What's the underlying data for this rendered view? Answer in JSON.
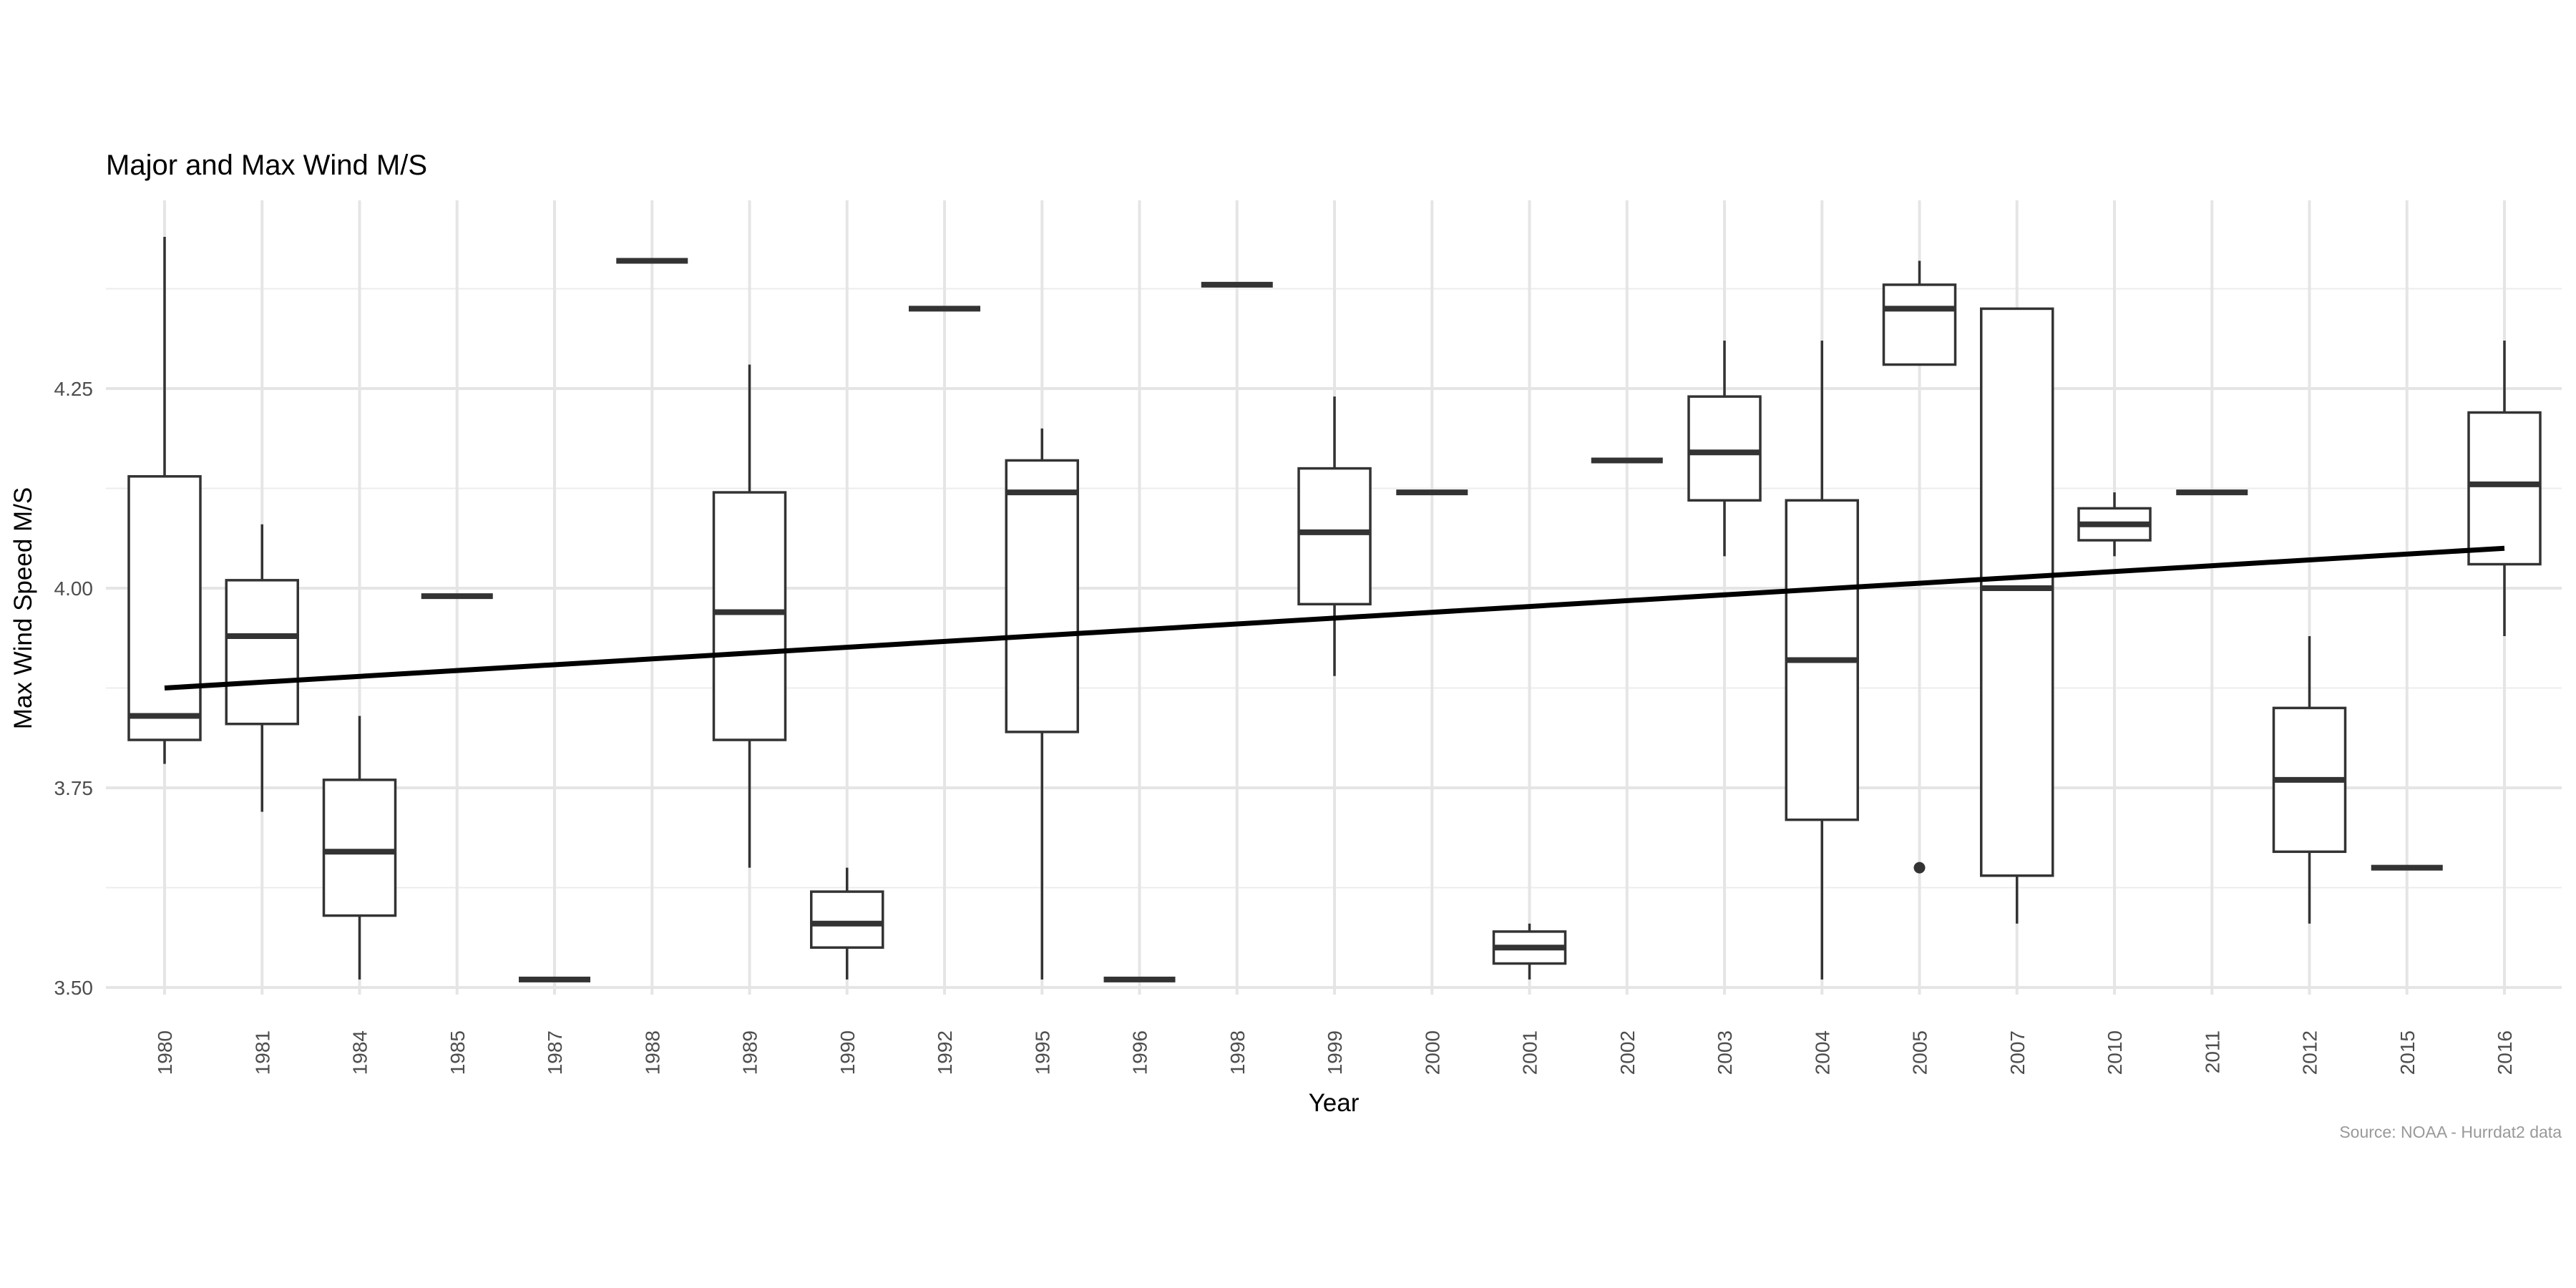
{
  "chart_data": {
    "type": "boxplot",
    "title": "Major and Max Wind M/S",
    "xlabel": "Year",
    "ylabel": "Max Wind Speed M/S",
    "caption": "Source: NOAA - Hurrdat2 data",
    "ylim": [
      3.47,
      4.55
    ],
    "y_ticks": [
      3.5,
      3.75,
      4.0,
      4.25
    ],
    "y_tick_labels": [
      "3.50",
      "3.75",
      "4.00",
      "4.25"
    ],
    "grid": true,
    "categories": [
      "1980",
      "1981",
      "1984",
      "1985",
      "1987",
      "1988",
      "1989",
      "1990",
      "1992",
      "1995",
      "1996",
      "1998",
      "1999",
      "2000",
      "2001",
      "2002",
      "2003",
      "2004",
      "2005",
      "2007",
      "2010",
      "2011",
      "2012",
      "2015",
      "2016"
    ],
    "boxes": [
      {
        "category": "1980",
        "min": 3.78,
        "q1": 3.81,
        "median": 3.84,
        "q3": 4.14,
        "max": 4.44,
        "outliers": []
      },
      {
        "category": "1981",
        "min": 3.72,
        "q1": 3.83,
        "median": 3.94,
        "q3": 4.01,
        "max": 4.08,
        "outliers": []
      },
      {
        "category": "1984",
        "min": 3.51,
        "q1": 3.59,
        "median": 3.67,
        "q3": 3.76,
        "max": 3.84,
        "outliers": []
      },
      {
        "category": "1985",
        "min": 3.99,
        "q1": 3.99,
        "median": 3.99,
        "q3": 3.99,
        "max": 3.99,
        "outliers": []
      },
      {
        "category": "1987",
        "min": 3.51,
        "q1": 3.51,
        "median": 3.51,
        "q3": 3.51,
        "max": 3.51,
        "outliers": []
      },
      {
        "category": "1988",
        "min": 4.41,
        "q1": 4.41,
        "median": 4.41,
        "q3": 4.41,
        "max": 4.41,
        "outliers": []
      },
      {
        "category": "1989",
        "min": 3.65,
        "q1": 3.81,
        "median": 3.97,
        "q3": 4.12,
        "max": 4.28,
        "outliers": []
      },
      {
        "category": "1990",
        "min": 3.51,
        "q1": 3.55,
        "median": 3.58,
        "q3": 3.62,
        "max": 3.65,
        "outliers": []
      },
      {
        "category": "1992",
        "min": 4.35,
        "q1": 4.35,
        "median": 4.35,
        "q3": 4.35,
        "max": 4.35,
        "outliers": []
      },
      {
        "category": "1995",
        "min": 3.51,
        "q1": 3.82,
        "median": 4.12,
        "q3": 4.16,
        "max": 4.2,
        "outliers": []
      },
      {
        "category": "1996",
        "min": 3.51,
        "q1": 3.51,
        "median": 3.51,
        "q3": 3.51,
        "max": 3.51,
        "outliers": []
      },
      {
        "category": "1998",
        "min": 4.38,
        "q1": 4.38,
        "median": 4.38,
        "q3": 4.38,
        "max": 4.38,
        "outliers": []
      },
      {
        "category": "1999",
        "min": 3.89,
        "q1": 3.98,
        "median": 4.07,
        "q3": 4.15,
        "max": 4.24,
        "outliers": []
      },
      {
        "category": "2000",
        "min": 4.12,
        "q1": 4.12,
        "median": 4.12,
        "q3": 4.12,
        "max": 4.12,
        "outliers": []
      },
      {
        "category": "2001",
        "min": 3.51,
        "q1": 3.53,
        "median": 3.55,
        "q3": 3.57,
        "max": 3.58,
        "outliers": []
      },
      {
        "category": "2002",
        "min": 4.16,
        "q1": 4.16,
        "median": 4.16,
        "q3": 4.16,
        "max": 4.16,
        "outliers": []
      },
      {
        "category": "2003",
        "min": 4.04,
        "q1": 4.11,
        "median": 4.17,
        "q3": 4.24,
        "max": 4.31,
        "outliers": []
      },
      {
        "category": "2004",
        "min": 3.51,
        "q1": 3.71,
        "median": 3.91,
        "q3": 4.11,
        "max": 4.31,
        "outliers": []
      },
      {
        "category": "2005",
        "min": 4.28,
        "q1": 4.28,
        "median": 4.35,
        "q3": 4.38,
        "max": 4.41,
        "outliers": [
          3.65
        ]
      },
      {
        "category": "2007",
        "min": 3.58,
        "q1": 3.64,
        "median": 4.0,
        "q3": 4.35,
        "max": 4.35,
        "outliers": []
      },
      {
        "category": "2010",
        "min": 4.04,
        "q1": 4.06,
        "median": 4.08,
        "q3": 4.1,
        "max": 4.12,
        "outliers": []
      },
      {
        "category": "2011",
        "min": 4.12,
        "q1": 4.12,
        "median": 4.12,
        "q3": 4.12,
        "max": 4.12,
        "outliers": []
      },
      {
        "category": "2012",
        "min": 3.58,
        "q1": 3.67,
        "median": 3.76,
        "q3": 3.85,
        "max": 3.94,
        "outliers": []
      },
      {
        "category": "2015",
        "min": 3.65,
        "q1": 3.65,
        "median": 3.65,
        "q3": 3.65,
        "max": 3.65,
        "outliers": []
      },
      {
        "category": "2016",
        "min": 3.94,
        "q1": 4.03,
        "median": 4.13,
        "q3": 4.22,
        "max": 4.31,
        "outliers": []
      }
    ],
    "trend_line": {
      "start": {
        "category": "1980",
        "y": 3.875
      },
      "end": {
        "category": "2016",
        "y": 4.05
      }
    }
  }
}
